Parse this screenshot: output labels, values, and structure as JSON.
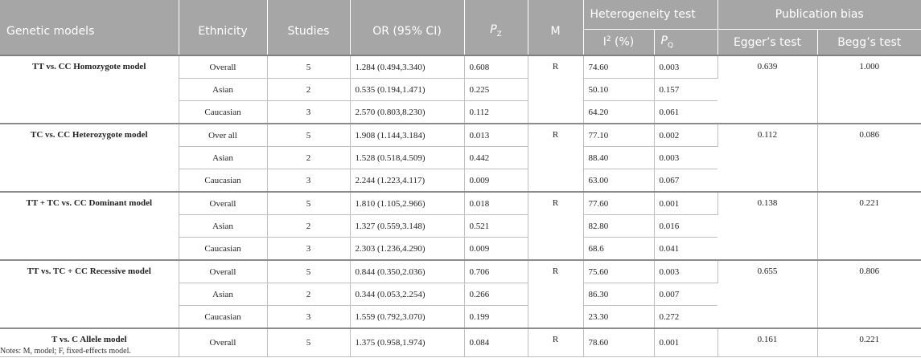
{
  "headers": {
    "genetic_models": "Genetic models",
    "ethnicity": "Ethnicity",
    "studies": "Studies",
    "or_ci": "OR (95% CI)",
    "pz_main": "P",
    "pz_sub": "Z",
    "m": "M",
    "heterogeneity": "Heterogeneity test",
    "i2_main": "I",
    "i2_sup": "2",
    "i2_rest": " (%)",
    "pq_main": "P",
    "pq_sub": "Q",
    "publication_bias": "Publication bias",
    "egger": "Egger’s test",
    "begg": "Begg’s test"
  },
  "groups": [
    {
      "model": "TT vs. CC Homozygote model",
      "m": "R",
      "egger": "0.639",
      "begg": "1.000",
      "rows": [
        {
          "ethnicity": "Overall",
          "studies": "5",
          "or": "1.284 (0.494,3.340)",
          "pz": "0.608",
          "i2": "74.60",
          "pq": "0.003"
        },
        {
          "ethnicity": "Asian",
          "studies": "2",
          "or": "0.535 (0.194,1.471)",
          "pz": "0.225",
          "i2": "50.10",
          "pq": "0.157"
        },
        {
          "ethnicity": "Caucasian",
          "studies": "3",
          "or": "2.570 (0.803,8.230)",
          "pz": "0.112",
          "i2": "64.20",
          "pq": "0.061"
        }
      ]
    },
    {
      "model": "TC vs. CC Heterozygote model",
      "m": "R",
      "egger": "0.112",
      "begg": "0.086",
      "rows": [
        {
          "ethnicity": "Over all",
          "studies": "5",
          "or": "1.908 (1.144,3.184)",
          "pz": "0.013",
          "i2": "77.10",
          "pq": "0.002"
        },
        {
          "ethnicity": "Asian",
          "studies": "2",
          "or": "1.528 (0.518,4.509)",
          "pz": "0.442",
          "i2": "88.40",
          "pq": "0.003"
        },
        {
          "ethnicity": "Caucasian",
          "studies": "3",
          "or": "2.244 (1.223,4.117)",
          "pz": "0.009",
          "i2": "63.00",
          "pq": "0.067"
        }
      ]
    },
    {
      "model": "TT + TC vs. CC Dominant model",
      "m": "R",
      "egger": "0.138",
      "begg": "0.221",
      "rows": [
        {
          "ethnicity": "Overall",
          "studies": "5",
          "or": "1.810 (1.105,2.966)",
          "pz": "0.018",
          "i2": "77.60",
          "pq": "0.001"
        },
        {
          "ethnicity": "Asian",
          "studies": "2",
          "or": "1.327 (0.559,3.148)",
          "pz": "0.521",
          "i2": "82.80",
          "pq": "0.016"
        },
        {
          "ethnicity": "Caucasian",
          "studies": "3",
          "or": "2.303 (1.236,4.290)",
          "pz": "0.009",
          "i2": "68.6",
          "pq": "0.041"
        }
      ]
    },
    {
      "model": "TT vs. TC + CC Recessive model",
      "m": "R",
      "egger": "0.655",
      "begg": "0.806",
      "rows": [
        {
          "ethnicity": "Overall",
          "studies": "5",
          "or": "0.844 (0.350,2.036)",
          "pz": "0.706",
          "i2": "75.60",
          "pq": "0.003"
        },
        {
          "ethnicity": "Asian",
          "studies": "2",
          "or": "0.344 (0.053,2.254)",
          "pz": "0.266",
          "i2": "86.30",
          "pq": "0.007"
        },
        {
          "ethnicity": "Caucasian",
          "studies": "3",
          "or": "1.559 (0.792,3.070)",
          "pz": "0.199",
          "i2": "23.30",
          "pq": "0.272"
        }
      ]
    },
    {
      "model": "T vs. C Allele model",
      "m": "R",
      "egger": "0.161",
      "begg": "0.221",
      "rows": [
        {
          "ethnicity": "Overall",
          "studies": "5",
          "or": "1.375 (0.958,1.974)",
          "pz": "0.084",
          "i2": "78.60",
          "pq": "0.001"
        }
      ]
    }
  ],
  "note": "Notes: M, model; F, fixed-effects model."
}
